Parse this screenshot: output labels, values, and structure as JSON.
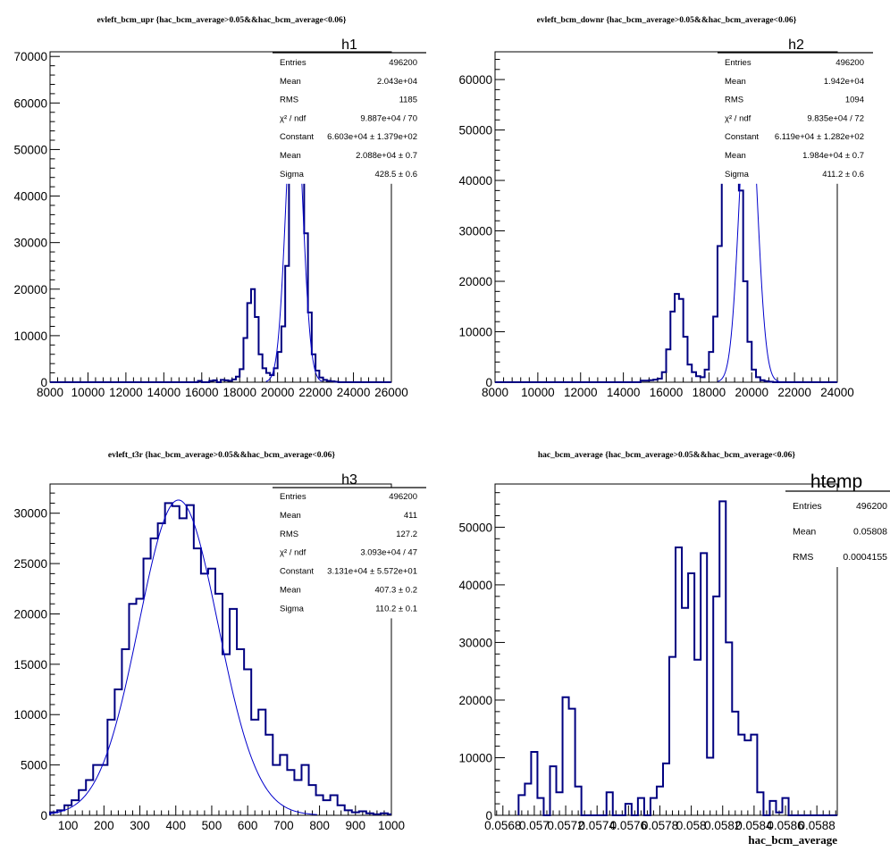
{
  "chart_data": [
    {
      "type": "histogram",
      "title": "evleft_bcm_upr {hac_bcm_average>0.05&&hac_bcm_average<0.06}",
      "stat_box": {
        "name": "h1",
        "rows": [
          {
            "label": "Entries",
            "value": "496200"
          },
          {
            "label": "Mean",
            "value": "2.043e+04"
          },
          {
            "label": "RMS",
            "value": "1185"
          },
          {
            "label": "χ² / ndf",
            "value": "9.887e+04 / 70"
          },
          {
            "label": "Constant",
            "value": "6.603e+04 ± 1.379e+02"
          },
          {
            "label": "Mean",
            "value": "2.088e+04 ± 0.7"
          },
          {
            "label": "Sigma",
            "value": "428.5 ± 0.6"
          }
        ]
      },
      "xlim": [
        8000,
        26000
      ],
      "ylim": [
        0,
        71000
      ],
      "xticks": [
        8000,
        10000,
        12000,
        14000,
        16000,
        18000,
        20000,
        22000,
        24000,
        26000
      ],
      "yticks": [
        0,
        10000,
        20000,
        30000,
        40000,
        50000,
        60000,
        70000
      ],
      "bin_edges_start": 8000,
      "bin_width": 200,
      "counts": [
        0,
        0,
        0,
        0,
        0,
        0,
        0,
        0,
        0,
        0,
        0,
        0,
        0,
        0,
        0,
        0,
        0,
        0,
        0,
        0,
        0,
        0,
        0,
        0,
        0,
        0,
        0,
        0,
        0,
        0,
        0,
        0,
        0,
        0,
        0,
        0,
        0,
        0,
        0,
        300,
        0,
        0,
        300,
        400,
        0,
        500,
        400,
        300,
        600,
        1200,
        2800,
        9500,
        17000,
        20000,
        14000,
        6000,
        3000,
        2000,
        1500,
        3000,
        6500,
        12000,
        25000,
        45000,
        64000,
        68000,
        55000,
        32000,
        15000,
        6000,
        2500,
        1000,
        500,
        300,
        200,
        100,
        0,
        0,
        0,
        0,
        0,
        0,
        0,
        0,
        0,
        0,
        0,
        0,
        0,
        0
      ],
      "fit": {
        "type": "gaussian",
        "constant": 66030,
        "mean": 20880,
        "sigma": 428.5
      }
    },
    {
      "type": "histogram",
      "title": "evleft_bcm_downr {hac_bcm_average>0.05&&hac_bcm_average<0.06}",
      "stat_box": {
        "name": "h2",
        "rows": [
          {
            "label": "Entries",
            "value": "496200"
          },
          {
            "label": "Mean",
            "value": "1.942e+04"
          },
          {
            "label": "RMS",
            "value": "1094"
          },
          {
            "label": "χ² / ndf",
            "value": "9.835e+04 / 72"
          },
          {
            "label": "Constant",
            "value": "6.119e+04 ± 1.282e+02"
          },
          {
            "label": "Mean",
            "value": "1.984e+04 ± 0.7"
          },
          {
            "label": "Sigma",
            "value": "411.2 ± 0.6"
          }
        ]
      },
      "xlim": [
        8000,
        24000
      ],
      "ylim": [
        0,
        65500
      ],
      "xticks": [
        8000,
        10000,
        12000,
        14000,
        16000,
        18000,
        20000,
        22000,
        24000
      ],
      "yticks": [
        0,
        10000,
        20000,
        30000,
        40000,
        50000,
        60000
      ],
      "bin_edges_start": 8000,
      "bin_width": 200,
      "counts": [
        0,
        0,
        0,
        0,
        0,
        0,
        0,
        0,
        0,
        0,
        0,
        0,
        0,
        0,
        0,
        0,
        0,
        0,
        0,
        0,
        0,
        0,
        0,
        0,
        0,
        0,
        0,
        0,
        0,
        0,
        0,
        0,
        0,
        0,
        300,
        300,
        400,
        500,
        700,
        2000,
        6500,
        14000,
        17500,
        16500,
        9000,
        3500,
        2000,
        1200,
        1000,
        2500,
        6000,
        13000,
        27000,
        43000,
        60000,
        63000,
        55000,
        38000,
        20000,
        8000,
        2500,
        1000,
        400,
        200,
        100,
        0,
        0,
        0,
        0,
        0,
        0,
        0,
        0,
        0,
        0,
        0,
        0,
        0,
        0,
        0
      ],
      "fit": {
        "type": "gaussian",
        "constant": 61190,
        "mean": 19840,
        "sigma": 411.2
      }
    },
    {
      "type": "histogram",
      "title": "evleft_t3r {hac_bcm_average>0.05&&hac_bcm_average<0.06}",
      "stat_box": {
        "name": "h3",
        "rows": [
          {
            "label": "Entries",
            "value": "496200"
          },
          {
            "label": "Mean",
            "value": "411"
          },
          {
            "label": "RMS",
            "value": "127.2"
          },
          {
            "label": "χ² / ndf",
            "value": "3.093e+04 / 47"
          },
          {
            "label": "Constant",
            "value": "3.131e+04 ± 5.572e+01"
          },
          {
            "label": "Mean",
            "value": "407.3 ± 0.2"
          },
          {
            "label": "Sigma",
            "value": "110.2 ± 0.1"
          }
        ]
      },
      "xlim": [
        50,
        1000
      ],
      "ylim": [
        0,
        32900
      ],
      "xticks": [
        100,
        200,
        300,
        400,
        500,
        600,
        700,
        800,
        900,
        1000
      ],
      "yticks": [
        0,
        5000,
        10000,
        15000,
        20000,
        25000,
        30000
      ],
      "bin_edges_start": 50,
      "bin_width": 20,
      "counts": [
        300,
        500,
        1000,
        1500,
        2500,
        3500,
        5000,
        5000,
        9500,
        12500,
        16500,
        21000,
        21500,
        25500,
        27500,
        29000,
        31000,
        30700,
        29500,
        30800,
        26500,
        24000,
        24500,
        22000,
        16000,
        20500,
        16500,
        14500,
        9500,
        10500,
        8000,
        5000,
        6000,
        4500,
        3500,
        5000,
        3000,
        2000,
        1500,
        2000,
        1000,
        500,
        300,
        400,
        200,
        100,
        200,
        100
      ],
      "fit": {
        "type": "gaussian",
        "constant": 31310,
        "mean": 407.3,
        "sigma": 110.2
      }
    },
    {
      "type": "histogram",
      "title": "hac_bcm_average {hac_bcm_average>0.05&&hac_bcm_average<0.06}",
      "xlabel": "hac_bcm_average",
      "stat_box": {
        "name": "htemp",
        "rows": [
          {
            "label": "Entries",
            "value": "496200"
          },
          {
            "label": "Mean",
            "value": "0.05808"
          },
          {
            "label": "RMS",
            "value": "0.0004155"
          }
        ]
      },
      "xlim": [
        0.05675,
        0.05893
      ],
      "ylim": [
        0,
        57500
      ],
      "xticks": [
        "0.0568",
        "0.057",
        "0.0572",
        "0.0574",
        "0.0576",
        "0.0578",
        "0.058",
        "0.0582",
        "0.0584",
        "0.0586",
        "0.0588"
      ],
      "xtick_values": [
        0.0568,
        0.057,
        0.0572,
        0.0574,
        0.0576,
        0.0578,
        0.058,
        0.0582,
        0.0584,
        0.0586,
        0.0588
      ],
      "yticks": [
        0,
        10000,
        20000,
        30000,
        40000,
        50000
      ],
      "bin_edges_start": 0.0569,
      "bin_width": 4e-05,
      "counts": [
        3500,
        5500,
        11000,
        3000,
        0,
        8500,
        4000,
        20500,
        18500,
        5000,
        0,
        0,
        0,
        0,
        4000,
        0,
        0,
        2000,
        0,
        3000,
        0,
        3000,
        5000,
        9000,
        27500,
        46500,
        36000,
        42000,
        27000,
        45500,
        10000,
        38000,
        54500,
        30000,
        18000,
        14000,
        13000,
        14000,
        4000,
        0,
        2500,
        500,
        3000,
        0,
        0,
        0,
        0,
        0,
        0,
        0,
        0,
        0,
        0,
        0,
        0
      ]
    }
  ]
}
